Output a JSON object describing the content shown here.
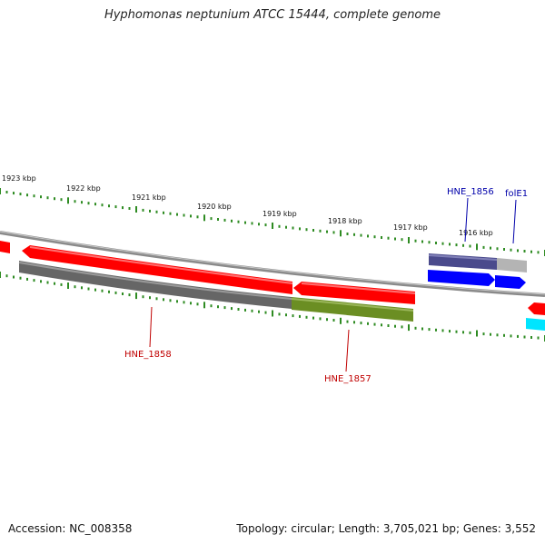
{
  "title": "Hyphomonas neptunium ATCC 15444, complete genome",
  "footer": {
    "accession": "Accession: NC_008358",
    "summary": "Topology: circular; Length: 3,705,021 bp; Genes: 3,552"
  },
  "ruler": {
    "labels": [
      "1923 kbp",
      "1922 kbp",
      "1921 kbp",
      "1920 kbp",
      "1919 kbp",
      "1918 kbp",
      "1917 kbp",
      "1916 kbp"
    ]
  },
  "genes": {
    "hne1858": "HNE_1858",
    "hne1857": "HNE_1857",
    "hne1856": "HNE_1856",
    "folE1": "folE1"
  },
  "colors": {
    "ruler": "#2e8b22",
    "backbone": "#8a8a8a",
    "gene_red": "#ff0000",
    "gene_blue": "#0000ff",
    "gene_cyan": "#00e5ff",
    "cds_gray": "#666666",
    "cds_green": "#6b8e23",
    "cds_navy": "#4a4a8c",
    "cds_lightgray": "#b4b4b4",
    "label_red": "#c00000",
    "label_blue": "#0000aa"
  }
}
